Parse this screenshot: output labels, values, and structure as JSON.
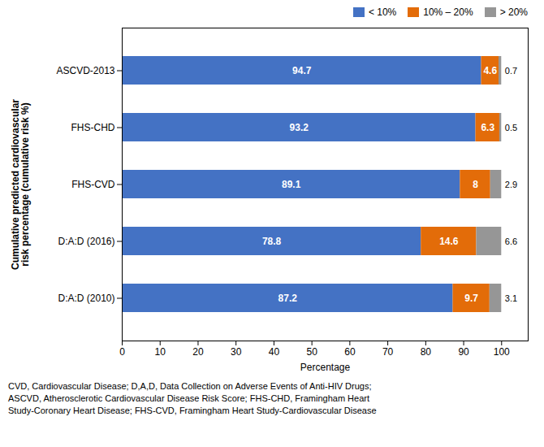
{
  "chart_data": {
    "type": "bar",
    "orientation": "horizontal",
    "stacked": true,
    "categories": [
      "D:A:D (2010)",
      "D:A:D (2016)",
      "FHS-CVD",
      "FHS-CHD",
      "ASCVD-2013"
    ],
    "series": [
      {
        "name": "< 10%",
        "color": "#4472C4",
        "values": [
          87.2,
          78.8,
          89.1,
          93.2,
          94.7
        ]
      },
      {
        "name": "10% – 20%",
        "color": "#E36C09",
        "values": [
          9.7,
          14.6,
          8.0,
          6.3,
          4.6
        ]
      },
      {
        "name": "> 20%",
        "color": "#969696",
        "values": [
          3.1,
          6.6,
          2.9,
          0.5,
          0.7
        ]
      }
    ],
    "xlabel": "Percentage",
    "ylabel": "Cumulative predicted cardiovascular\nrisk percentage (cumulative risk %)",
    "xlim": [
      0,
      107
    ],
    "xticks": [
      0,
      10,
      20,
      30,
      40,
      50,
      60,
      70,
      80,
      90,
      100
    ],
    "data_labels": true,
    "legend": "upper right",
    "grid": false,
    "caption": "CVD, Cardiovascular Disease; D,A,D, Data Collection on Adverse Events of Anti-HIV Drugs;\nASCVD, Atherosclerotic Cardiovascular Disease Risk Score; FHS-CHD, Framingham Heart\nStudy-Coronary Heart Disease; FHS-CVD, Framingham Heart Study-Cardiovascular Disease"
  }
}
